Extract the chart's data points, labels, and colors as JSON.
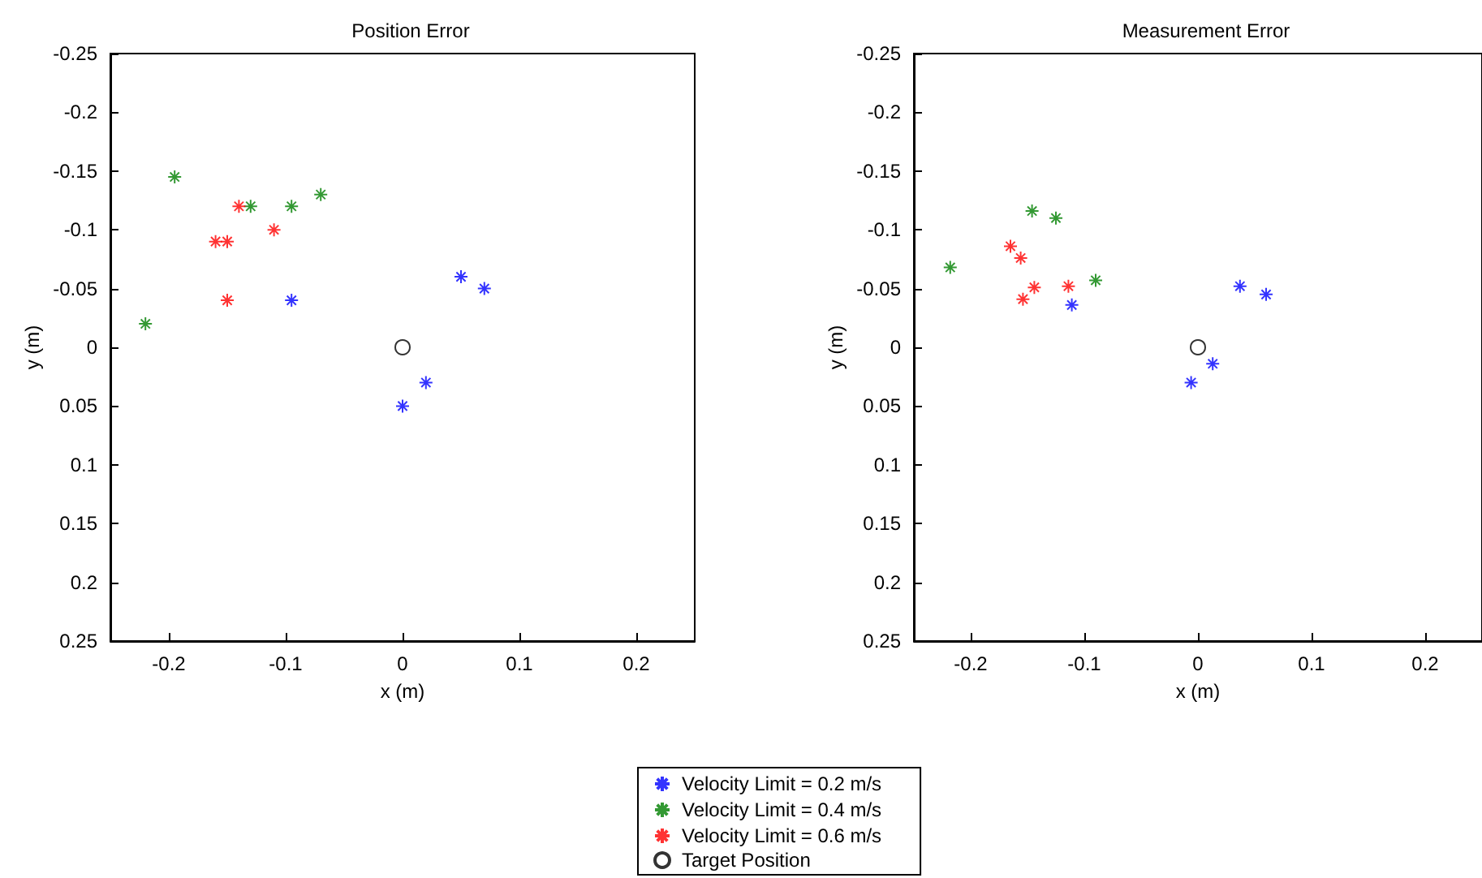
{
  "chart_data": [
    {
      "type": "scatter",
      "title": "Position Error",
      "xlabel": "x (m)",
      "ylabel": "y (m)",
      "xlim": [
        -0.25,
        0.25
      ],
      "xticks": [
        -0.2,
        -0.1,
        0,
        0.1,
        0.2
      ],
      "ylim": [
        0.25,
        -0.25
      ],
      "yticks": [
        -0.25,
        -0.2,
        -0.15,
        -0.1,
        -0.05,
        0,
        0.05,
        0.1,
        0.15,
        0.2,
        0.25
      ],
      "grid": false,
      "legend": "bottom",
      "series": [
        {
          "name": "Velocity Limit = 0.2 m/s",
          "color": "#0000ff",
          "marker": "cross",
          "x": [
            -0.095,
            0.05,
            0.07,
            0,
            0.02
          ],
          "values": [
            -0.04,
            -0.06,
            -0.05,
            0.05,
            0.03
          ]
        },
        {
          "name": "Velocity Limit = 0.4 m/s",
          "color": "#008000",
          "marker": "cross",
          "x": [
            -0.22,
            -0.195,
            -0.13,
            -0.095,
            -0.07
          ],
          "values": [
            -0.02,
            -0.145,
            -0.12,
            -0.12,
            -0.13
          ]
        },
        {
          "name": "Velocity Limit = 0.6 m/s",
          "color": "#ff0000",
          "marker": "cross",
          "x": [
            -0.14,
            -0.16,
            -0.15,
            -0.11,
            -0.15
          ],
          "values": [
            -0.12,
            -0.09,
            -0.09,
            -0.1,
            -0.04
          ]
        },
        {
          "name": "Target Position",
          "color": "#000000",
          "marker": "circle",
          "x": [
            0
          ],
          "values": [
            0
          ]
        }
      ]
    },
    {
      "type": "scatter",
      "title": "Measurement Error",
      "xlabel": "x (m)",
      "ylabel": "y (m)",
      "xlim": [
        -0.25,
        0.25
      ],
      "xticks": [
        -0.2,
        -0.1,
        0,
        0.1,
        0.2
      ],
      "ylim": [
        0.25,
        -0.25
      ],
      "yticks": [
        -0.25,
        -0.2,
        -0.15,
        -0.1,
        -0.05,
        0,
        0.05,
        0.1,
        0.15,
        0.2,
        0.25
      ],
      "grid": false,
      "legend": "bottom",
      "series": [
        {
          "name": "Velocity Limit = 0.2 m/s",
          "color": "#0000ff",
          "marker": "cross",
          "x": [
            -0.111,
            0.037,
            0.06,
            -0.006,
            0.013
          ],
          "values": [
            -0.036,
            -0.052,
            -0.045,
            0.03,
            0.014
          ]
        },
        {
          "name": "Velocity Limit = 0.4 m/s",
          "color": "#008000",
          "marker": "cross",
          "x": [
            -0.218,
            -0.146,
            -0.125,
            -0.09
          ],
          "values": [
            -0.068,
            -0.116,
            -0.11,
            -0.057
          ]
        },
        {
          "name": "Velocity Limit = 0.6 m/s",
          "color": "#ff0000",
          "marker": "cross",
          "x": [
            -0.165,
            -0.156,
            -0.144,
            -0.154,
            -0.114
          ],
          "values": [
            -0.086,
            -0.076,
            -0.051,
            -0.041,
            -0.052
          ]
        },
        {
          "name": "Target Position",
          "color": "#000000",
          "marker": "circle",
          "x": [
            0
          ],
          "values": [
            0
          ]
        }
      ]
    }
  ]
}
